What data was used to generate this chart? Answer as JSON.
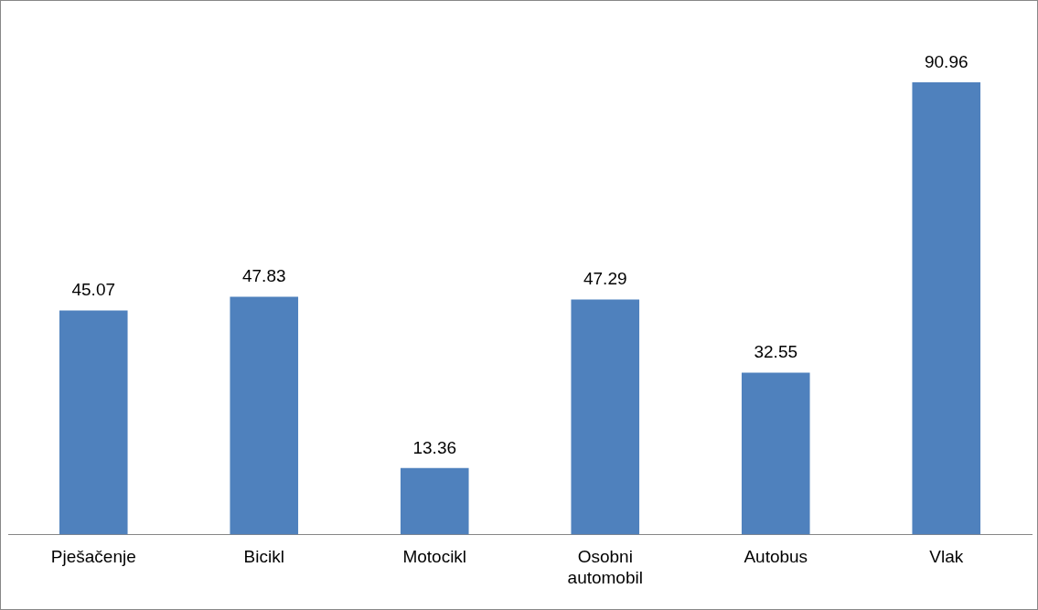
{
  "chart_data": {
    "type": "bar",
    "categories": [
      "Pješačenje",
      "Bicikl",
      "Motocikl",
      "Osobni automobil",
      "Autobus",
      "Vlak"
    ],
    "values": [
      45.07,
      47.83,
      13.36,
      47.29,
      32.55,
      90.96
    ],
    "color": "#4f81bd",
    "data_labels": true,
    "grid": false,
    "legend": false
  }
}
